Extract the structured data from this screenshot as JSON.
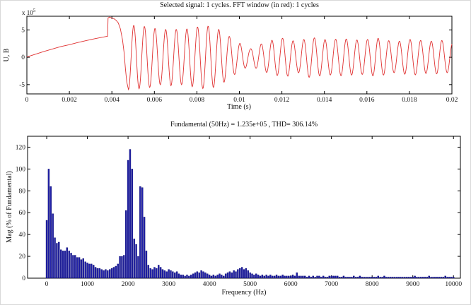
{
  "figure": {
    "bg_color": "#ffffff",
    "axis_color": "#000000",
    "text_color": "#1a1a1a"
  },
  "chart_data": [
    {
      "type": "line",
      "title": "Selected signal: 1 cycles. FFT window (in red): 1 cycles",
      "xlabel": "Time (s)",
      "ylabel": "U, B",
      "y_multiplier": {
        "base": "x 10",
        "exponent": "5"
      },
      "line_color": "#e03030",
      "xlim": [
        0,
        0.02
      ],
      "ylim": [
        -6.7,
        7.5
      ],
      "xticks": [
        0,
        0.002,
        0.004,
        0.006,
        0.008,
        0.01,
        0.012,
        0.014,
        0.016,
        0.018,
        0.02
      ],
      "xtick_labels": [
        "0",
        "0.002",
        "0.004",
        "0.006",
        "0.008",
        "0.01",
        "0.012",
        "0.014",
        "0.016",
        "0.018",
        "0.02"
      ],
      "yticks": [
        -5,
        0,
        5
      ],
      "ytick_labels": [
        "-5",
        "0",
        "5"
      ],
      "signal": {
        "ramp_points": [
          [
            0,
            0.05
          ],
          [
            0.0004,
            0.55
          ],
          [
            0.0008,
            1.05
          ],
          [
            0.0012,
            1.5
          ],
          [
            0.0016,
            1.95
          ],
          [
            0.002,
            2.3
          ],
          [
            0.0024,
            2.7
          ],
          [
            0.0028,
            3.05
          ],
          [
            0.0032,
            3.4
          ],
          [
            0.0036,
            3.7
          ],
          [
            0.0038,
            3.85
          ],
          [
            0.00382,
            7.2
          ],
          [
            0.0039,
            7.35
          ],
          [
            0.004,
            7.15
          ],
          [
            0.0041,
            7.05
          ],
          [
            0.0042,
            6.75
          ],
          [
            0.0043,
            6.3
          ],
          [
            0.0044,
            5.2
          ],
          [
            0.0045,
            3.2
          ],
          [
            0.00457,
            1.0
          ],
          [
            0.00464,
            -2.2
          ],
          [
            0.0047,
            -4.5
          ],
          [
            0.00478,
            -5.9
          ]
        ],
        "oscillation": {
          "carrier_hz": 2000,
          "t_start": 0.00478,
          "t_end": 0.02,
          "sample_step_s": 2e-05,
          "start_polarity": -1,
          "amplitude_envelope": [
            [
              0.00478,
              5.9
            ],
            [
              0.0052,
              5.8
            ],
            [
              0.0058,
              5.5
            ],
            [
              0.0063,
              5.0
            ],
            [
              0.0068,
              5.2
            ],
            [
              0.0073,
              5.0
            ],
            [
              0.0078,
              5.4
            ],
            [
              0.0084,
              5.8
            ],
            [
              0.0088,
              5.5
            ],
            [
              0.0092,
              4.8
            ],
            [
              0.0096,
              3.6
            ],
            [
              0.01,
              2.6
            ],
            [
              0.0105,
              1.5
            ],
            [
              0.011,
              2.4
            ],
            [
              0.0116,
              3.2
            ],
            [
              0.0122,
              3.6
            ],
            [
              0.0127,
              2.7
            ],
            [
              0.0133,
              3.7
            ],
            [
              0.0141,
              3.2
            ],
            [
              0.0149,
              3.4
            ],
            [
              0.0157,
              3.1
            ],
            [
              0.0165,
              3.5
            ],
            [
              0.0173,
              2.8
            ],
            [
              0.0181,
              3.3
            ],
            [
              0.0189,
              2.9
            ],
            [
              0.0195,
              3.1
            ],
            [
              0.02,
              2.6
            ]
          ]
        }
      }
    },
    {
      "type": "bar",
      "title": "Fundamental (50Hz) = 1.235e+05 , THD= 306.14%",
      "xlabel": "Frequency (Hz)",
      "ylabel": "Mag (% of Fundamental)",
      "bar_color": "#2222aa",
      "bar_edge_color": "#000066",
      "xlim": [
        -470,
        10170
      ],
      "ylim": [
        0,
        130
      ],
      "bin_hz": 50,
      "xticks": [
        0,
        1000,
        2000,
        3000,
        4000,
        5000,
        6000,
        7000,
        8000,
        9000,
        10000
      ],
      "xtick_labels": [
        "0",
        "1000",
        "2000",
        "3000",
        "4000",
        "5000",
        "6000",
        "7000",
        "8000",
        "9000",
        "10000"
      ],
      "yticks": [
        0,
        20,
        40,
        60,
        80,
        100,
        120
      ],
      "ytick_labels": [
        "0",
        "20",
        "40",
        "60",
        "80",
        "100",
        "120"
      ],
      "values": [
        53,
        100,
        84,
        59,
        37,
        32,
        33,
        26,
        25,
        25,
        28,
        25,
        23,
        21,
        21,
        19,
        19,
        17,
        18,
        15,
        14,
        13,
        13,
        12,
        10,
        9,
        9,
        8,
        7,
        8,
        7,
        8,
        9,
        10,
        11,
        13,
        20,
        20,
        21,
        62,
        108,
        118,
        100,
        36,
        31,
        20,
        84,
        83,
        56,
        25,
        12,
        9,
        8,
        10,
        9,
        12,
        10,
        8,
        7,
        6,
        8,
        7,
        6,
        5,
        6,
        4,
        3,
        3,
        2,
        3,
        2,
        3,
        4,
        5,
        6,
        5,
        7,
        6,
        5,
        4,
        3,
        2,
        3,
        2,
        3,
        4,
        3,
        2,
        4,
        5,
        6,
        5,
        7,
        6,
        8,
        9,
        10,
        8,
        9,
        7,
        5,
        4,
        3,
        4,
        3,
        2,
        3,
        2,
        3,
        2,
        3,
        2,
        2,
        3,
        2,
        2,
        3,
        2,
        2,
        2,
        2,
        3,
        2,
        5,
        2,
        2,
        2,
        2,
        1,
        2,
        1,
        2,
        1,
        2,
        2,
        1,
        2,
        1,
        1,
        2,
        2,
        2,
        2,
        2,
        1,
        1,
        2,
        1,
        1,
        1,
        1,
        2,
        1,
        1,
        2,
        1,
        1,
        1,
        1,
        1,
        1,
        1,
        1,
        2,
        1,
        1,
        2,
        1,
        1,
        1,
        1,
        1,
        1,
        1,
        1,
        1,
        1,
        1,
        1,
        1,
        1,
        2,
        1,
        1,
        1,
        1,
        1,
        1,
        2,
        1,
        1,
        1,
        1,
        1,
        1,
        1,
        2,
        1,
        1,
        1,
        1
      ]
    }
  ]
}
